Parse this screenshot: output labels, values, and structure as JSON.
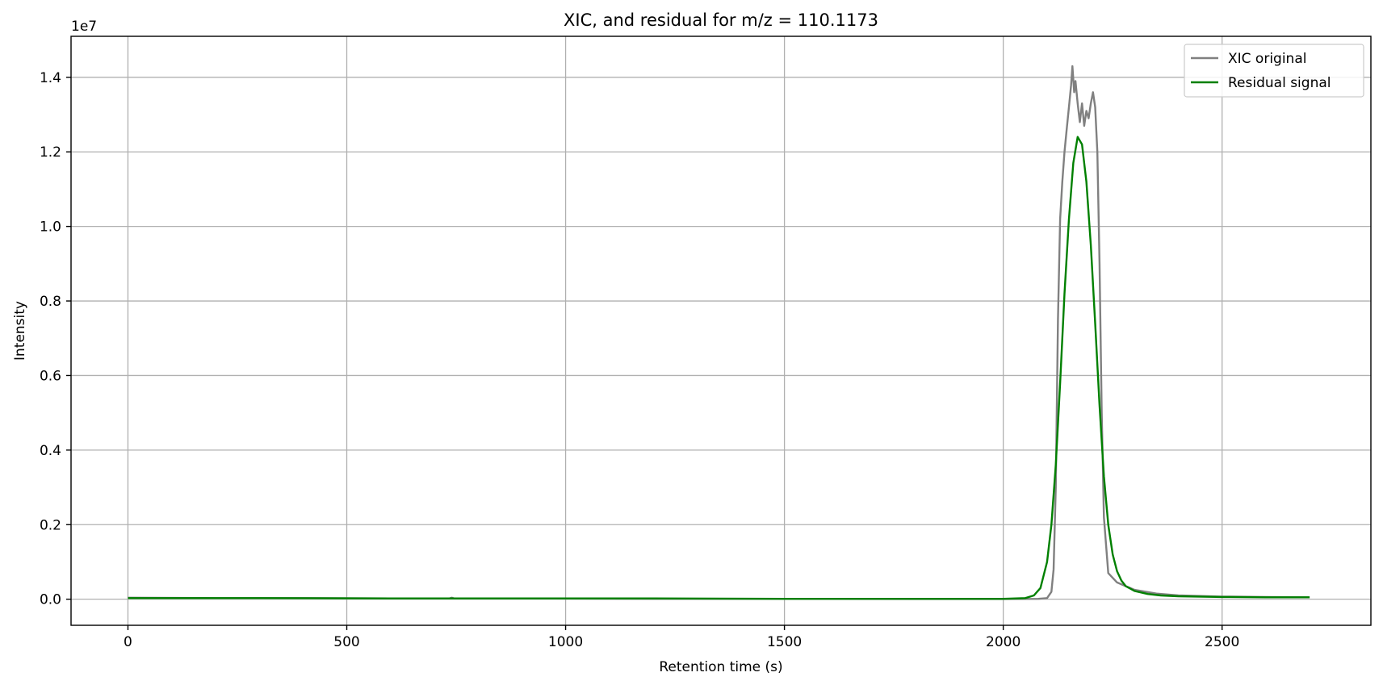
{
  "chart_data": {
    "type": "line",
    "title": "XIC, and residual for m/z = 110.1173",
    "xlabel": "Retention time (s)",
    "ylabel": "Intensity",
    "y_offset_label": "1e7",
    "xlim": [
      -130,
      2840
    ],
    "ylim": [
      -0.07,
      1.51
    ],
    "y_scale_note": "y values in units of 1e7",
    "x_ticks": [
      0,
      500,
      1000,
      1500,
      2000,
      2500
    ],
    "x_tick_labels": [
      "0",
      "500",
      "1000",
      "1500",
      "2000",
      "2500"
    ],
    "y_ticks": [
      0.0,
      0.2,
      0.4,
      0.6,
      0.8,
      1.0,
      1.2,
      1.4
    ],
    "y_tick_labels": [
      "0.0",
      "0.2",
      "0.4",
      "0.6",
      "0.8",
      "1.0",
      "1.2",
      "1.4"
    ],
    "grid": true,
    "legend_position": "top-right",
    "series": [
      {
        "name": "XIC original",
        "color": "#808080",
        "x": [
          0,
          200,
          400,
          600,
          735,
          740,
          745,
          900,
          1200,
          1500,
          1800,
          2000,
          2080,
          2100,
          2110,
          2115,
          2120,
          2125,
          2130,
          2135,
          2140,
          2145,
          2150,
          2155,
          2158,
          2162,
          2165,
          2170,
          2175,
          2180,
          2185,
          2190,
          2195,
          2200,
          2205,
          2210,
          2215,
          2220,
          2225,
          2230,
          2240,
          2260,
          2280,
          2300,
          2350,
          2400,
          2500,
          2600,
          2700
        ],
        "y": [
          0.004,
          0.003,
          0.003,
          0.002,
          0.002,
          0.004,
          0.002,
          0.002,
          0.001,
          0.001,
          0.0005,
          0.0005,
          0.001,
          0.003,
          0.02,
          0.08,
          0.3,
          0.75,
          1.02,
          1.12,
          1.2,
          1.26,
          1.32,
          1.38,
          1.43,
          1.36,
          1.39,
          1.33,
          1.28,
          1.33,
          1.27,
          1.31,
          1.29,
          1.33,
          1.36,
          1.32,
          1.2,
          0.9,
          0.5,
          0.22,
          0.07,
          0.045,
          0.035,
          0.025,
          0.015,
          0.01,
          0.007,
          0.006,
          0.005
        ]
      },
      {
        "name": "Residual signal",
        "color": "#008000",
        "x": [
          0,
          300,
          600,
          900,
          1200,
          1500,
          1800,
          2000,
          2050,
          2070,
          2085,
          2100,
          2110,
          2120,
          2130,
          2140,
          2150,
          2160,
          2170,
          2180,
          2190,
          2200,
          2210,
          2220,
          2230,
          2240,
          2250,
          2260,
          2270,
          2280,
          2300,
          2330,
          2360,
          2400,
          2500,
          2600,
          2700
        ],
        "y": [
          0.003,
          0.003,
          0.002,
          0.002,
          0.002,
          0.001,
          0.001,
          0.001,
          0.003,
          0.01,
          0.03,
          0.1,
          0.2,
          0.36,
          0.58,
          0.82,
          1.02,
          1.17,
          1.24,
          1.22,
          1.12,
          0.95,
          0.74,
          0.52,
          0.33,
          0.2,
          0.12,
          0.075,
          0.05,
          0.035,
          0.022,
          0.014,
          0.01,
          0.008,
          0.006,
          0.005,
          0.005
        ]
      }
    ]
  }
}
